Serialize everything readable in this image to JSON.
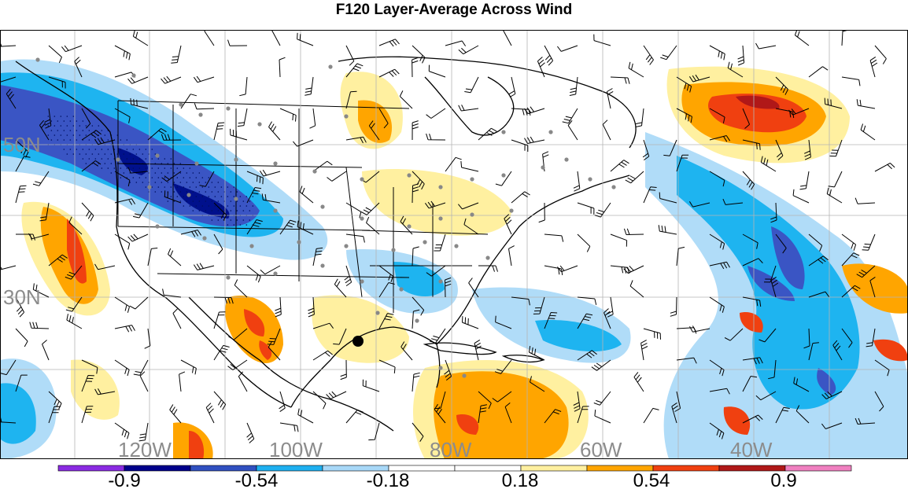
{
  "title": "F120 Layer-Average Across Wind",
  "map": {
    "lat_labels": [
      "50N",
      "30N"
    ],
    "lon_labels": [
      "120W",
      "100W",
      "80W",
      "60W",
      "40W"
    ],
    "grid_label_color": "#8c8c8c",
    "marker": "black-dot"
  },
  "colorbar": {
    "ticks": [
      "-0.9",
      "-0.54",
      "-0.18",
      "0.18",
      "0.54",
      "0.9"
    ],
    "colors": [
      "#8a2be2",
      "#00008b",
      "#3050c0",
      "#1eb0f0",
      "#a8d8f8",
      "#ffffff",
      "#ffffff",
      "#fff0a0",
      "#ffa500",
      "#f04010",
      "#b01818",
      "#f080c0"
    ]
  },
  "shading_palette": {
    "neg3": "#00108c",
    "neg2": "#3a55c4",
    "neg1": "#1eb4f0",
    "neg0": "#b0dcf8",
    "pos0": "#fff0a0",
    "pos1": "#ffa500",
    "pos2": "#f04010",
    "pos3": "#b01818"
  }
}
